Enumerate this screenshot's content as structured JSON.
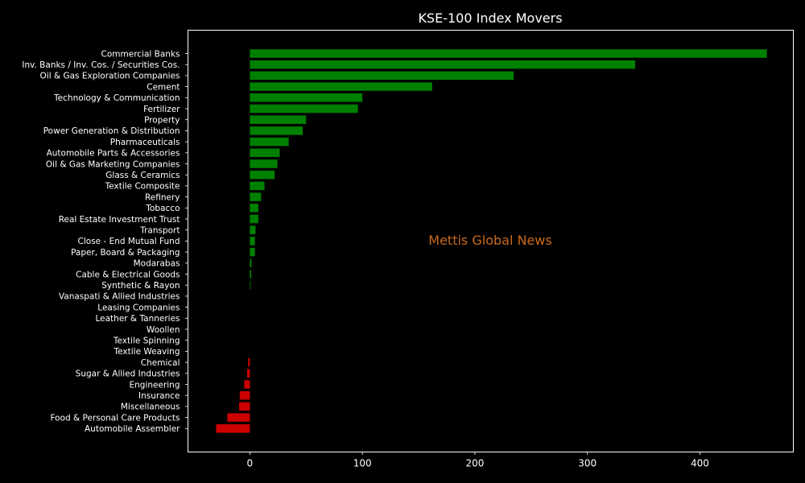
{
  "chart_data": {
    "type": "bar",
    "orientation": "horizontal",
    "title": "KSE-100 Index Movers",
    "watermark": "Mettis Global News",
    "xlim": [
      -55,
      483
    ],
    "xticks": [
      0,
      100,
      200,
      300,
      400
    ],
    "grid": false,
    "colors": {
      "positive": "#008000",
      "negative": "#cc0000",
      "background": "#000000",
      "axes": "#ffffff",
      "text": "#ffffff",
      "watermark": "#c8691c"
    },
    "categories": [
      "Commercial Banks",
      "Inv. Banks / Inv. Cos. / Securities Cos.",
      "Oil & Gas Exploration Companies",
      "Cement",
      "Technology & Communication",
      "Fertilizer",
      "Property",
      "Power Generation & Distribution",
      "Pharmaceuticals",
      "Automobile Parts & Accessories",
      "Oil & Gas Marketing Companies",
      "Glass & Ceramics",
      "Textile Composite",
      "Refinery",
      "Tobacco",
      "Real Estate Investment Trust",
      "Transport",
      "Close - End Mutual Fund",
      "Paper, Board & Packaging",
      "Modarabas",
      "Cable & Electrical Goods",
      "Synthetic & Rayon",
      "Vanaspati & Allied Industries",
      "Leasing Companies",
      "Leather & Tanneries",
      "Woollen",
      "Textile Spinning",
      "Textile Weaving",
      "Chemical",
      "Sugar & Allied Industries",
      "Engineering",
      "Insurance",
      "Miscellaneous",
      "Food & Personal Care Products",
      "Automobile Assembler"
    ],
    "values": [
      459.5,
      342.5,
      234.5,
      162,
      100,
      96,
      50,
      47,
      34.5,
      26.5,
      24.5,
      22,
      13,
      10,
      7.5,
      7.5,
      5,
      4.5,
      4.5,
      1.5,
      1.2,
      0.6,
      0,
      0,
      0,
      0,
      0,
      0,
      -1.5,
      -2.5,
      -5,
      -9,
      -9.5,
      -20,
      -30
    ]
  }
}
